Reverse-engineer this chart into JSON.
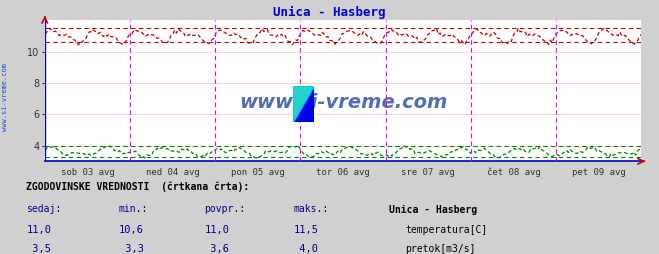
{
  "title": "Unica - Hasberg",
  "title_color": "#0000dd",
  "bg_color": "#d0d0d0",
  "plot_bg_color": "#ffffff",
  "x_labels": [
    "sob 03 avg",
    "ned 04 avg",
    "pon 05 avg",
    "tor 06 avg",
    "sre 07 avg",
    "čet 08 avg",
    "pet 09 avg"
  ],
  "y_ticks": [
    4,
    6,
    8,
    10
  ],
  "ylim": [
    3.0,
    12.0
  ],
  "temp_color": "#cc0000",
  "flow_color": "#008800",
  "temp_avg": 11.0,
  "temp_min": 10.6,
  "temp_max": 11.5,
  "flow_avg": 3.6,
  "flow_min": 3.3,
  "flow_max": 4.0,
  "temp_current": 11.0,
  "flow_current": 3.5,
  "vline_color": "#ee00ee",
  "grid_color": "#ffcccc",
  "grid_minor_color": "#dddddd",
  "watermark": "www.si-vreme.com",
  "watermark_color": "#3355aa",
  "n_points": 336,
  "n_days": 7,
  "left_label": "www.si-vreme.com",
  "label_text1": "ZGODOVINSKE VREDNOSTI  (črtkana črta):",
  "col_sedaj": "sedaj:",
  "col_min": "min.:",
  "col_povpr": "povpr.:",
  "col_maks": "maks.:",
  "col_station": "Unica - Hasberg",
  "row1_label": "temperatura[C]",
  "row2_label": "pretok[m3/s]"
}
